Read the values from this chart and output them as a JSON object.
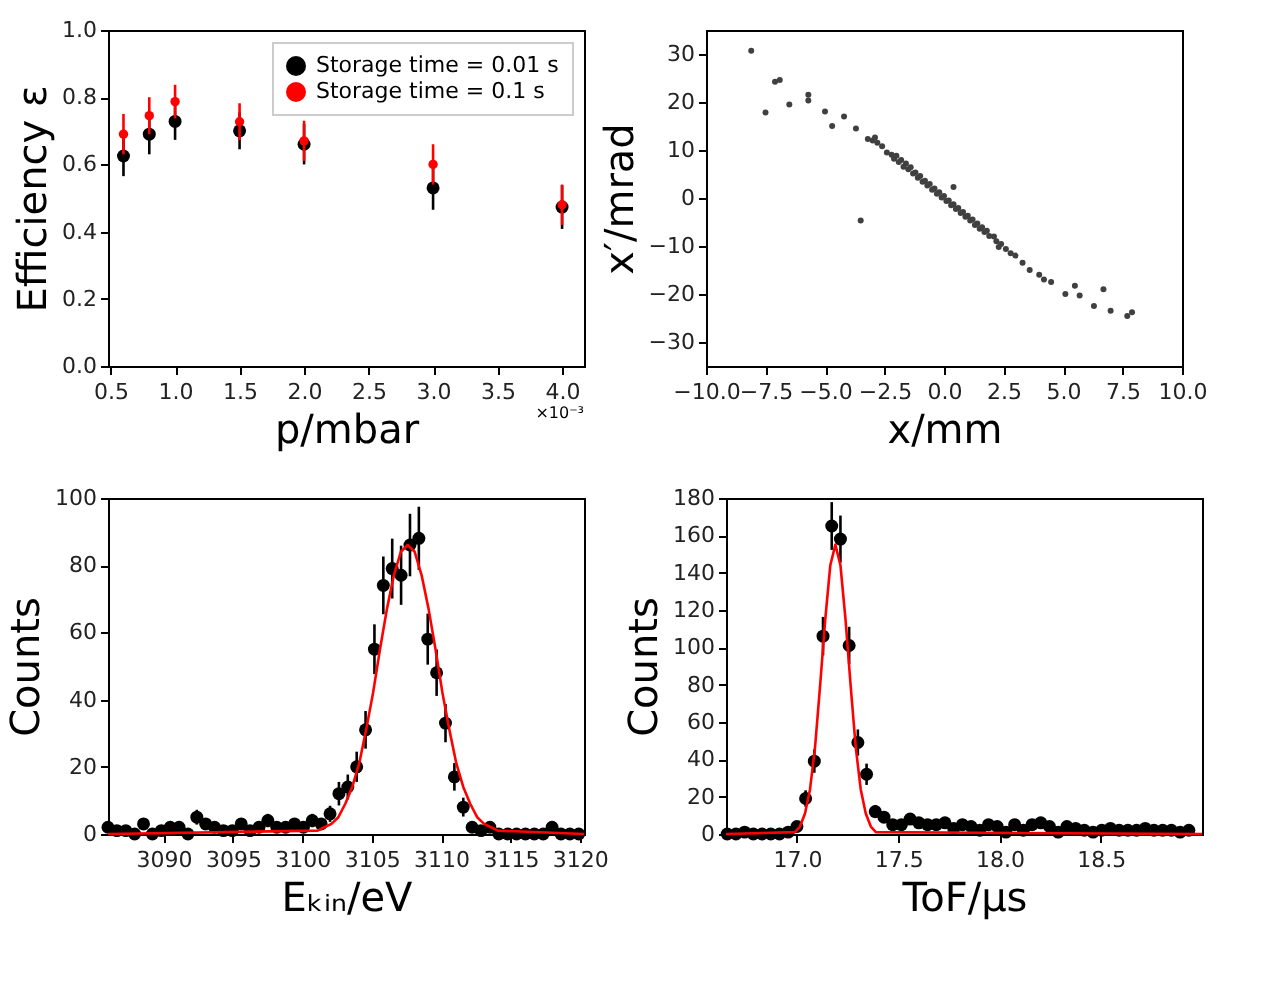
{
  "chart_data": [
    {
      "type": "scatter",
      "xlabel": "p/mbar",
      "ylabel": "Efficiency ε",
      "annotations": [
        "×10⁻³"
      ],
      "legend": "top right",
      "marker": "circle",
      "x": [
        0.6,
        0.8,
        1.0,
        1.5,
        2.0,
        3.0,
        4.0
      ],
      "xlim": [
        0.48,
        4.17
      ],
      "xticks": [
        {
          "value": 0.5,
          "label": "0.5"
        },
        {
          "value": 1,
          "label": "1.0"
        },
        {
          "value": 1.5,
          "label": "1.5"
        },
        {
          "value": 2,
          "label": "2.0"
        },
        {
          "value": 2.5,
          "label": "2.5"
        },
        {
          "value": 3,
          "label": "3.0"
        },
        {
          "value": 3.5,
          "label": "3.5"
        },
        {
          "value": 4,
          "label": "4.0"
        }
      ],
      "ylim": [
        0,
        1
      ],
      "yticks": [
        {
          "value": 0,
          "label": "0.0"
        },
        {
          "value": 0.2,
          "label": "0.2"
        },
        {
          "value": 0.4,
          "label": "0.4"
        },
        {
          "value": 0.6,
          "label": "0.6"
        },
        {
          "value": 0.8,
          "label": "0.8"
        },
        {
          "value": 1,
          "label": "1.0"
        }
      ],
      "series": [
        {
          "name": "Storage time = 0.01 s",
          "color": "#000000",
          "values": [
            0.625,
            0.69,
            0.728,
            0.7,
            0.66,
            0.53,
            0.473
          ],
          "errors": [
            0.06,
            0.06,
            0.055,
            0.055,
            0.06,
            0.065,
            0.065
          ]
        },
        {
          "name": "Storage time = 0.1 s",
          "color": "#ff0000",
          "values": [
            0.69,
            0.745,
            0.787,
            0.727,
            0.67,
            0.6,
            0.48
          ],
          "errors": [
            0.06,
            0.055,
            0.05,
            0.055,
            0.06,
            0.06,
            0.06
          ]
        }
      ]
    },
    {
      "type": "scatter",
      "xlabel": "x/mm",
      "ylabel": "x′/mrad",
      "marker": "circle",
      "xlim": [
        -10,
        10
      ],
      "xticks": [
        {
          "value": -10,
          "label": "−10.0"
        },
        {
          "value": -7.5,
          "label": "−7.5"
        },
        {
          "value": -5,
          "label": "−5.0"
        },
        {
          "value": -2.5,
          "label": "−2.5"
        },
        {
          "value": 0,
          "label": "0.0"
        },
        {
          "value": 2.5,
          "label": "2.5"
        },
        {
          "value": 5,
          "label": "5.0"
        },
        {
          "value": 7.5,
          "label": "7.5"
        },
        {
          "value": 10,
          "label": "10.0"
        }
      ],
      "ylim": [
        -35,
        35
      ],
      "yticks": [
        {
          "value": -30,
          "label": "−30"
        },
        {
          "value": -20,
          "label": "−20"
        },
        {
          "value": -10,
          "label": "−10"
        },
        0,
        10,
        20,
        30
      ],
      "x": [
        -2.2,
        -2.1,
        -2.0,
        -1.9,
        -1.8,
        -1.7,
        -1.6,
        -1.5,
        -1.4,
        -1.3,
        -1.2,
        -1.1,
        -1.0,
        -0.9,
        -0.8,
        -0.7,
        -0.6,
        -0.5,
        -0.4,
        -0.3,
        -0.2,
        -0.1,
        0,
        0.1,
        0.2,
        0.3,
        0.4,
        0.5,
        0.6,
        0.7,
        0.8,
        0.9,
        1.0,
        1.1,
        1.2,
        1.3,
        1.4,
        1.5,
        1.6,
        1.7,
        1.8,
        1.9,
        2.1,
        2.2,
        -2.6,
        -2.4,
        -3.0,
        -2.9,
        -2.8,
        2.3,
        2.4,
        2.6,
        2.8,
        -8.1,
        -7.5,
        -7.1,
        -6.9,
        -6.5,
        -5.7,
        -5.7,
        -5.0,
        -4.7,
        -4.2,
        -3.7,
        -3.5,
        -3.2,
        0.4,
        3.0,
        3.3,
        3.6,
        4.0,
        4.2,
        4.5,
        5.1,
        5.5,
        5.7,
        6.3,
        6.7,
        7.0,
        7.7,
        7.9
      ],
      "series": [
        {
          "color": "#404040",
          "values": [
            9,
            8.2,
            8.8,
            7.5,
            7.9,
            6.5,
            7.2,
            6.0,
            6.4,
            5.1,
            5.3,
            4.2,
            4.6,
            3.4,
            3.6,
            2.6,
            2.9,
            1.7,
            2.0,
            0.9,
            1.2,
            0.1,
            0.4,
            -0.6,
            -0.5,
            -1.5,
            -1.3,
            -2.3,
            -2.1,
            -3.1,
            -2.9,
            -3.9,
            -3.7,
            -4.7,
            -4.5,
            -5.6,
            -5.3,
            -6.4,
            -6.1,
            -7.1,
            -6.8,
            -7.9,
            -8.0,
            -9.0,
            10.8,
            9.5,
            12.0,
            12.6,
            11.5,
            -10.2,
            -9.6,
            -10.6,
            -11.5,
            30.7,
            17.8,
            24.2,
            24.6,
            19.5,
            21.5,
            20.3,
            18,
            15,
            17,
            14.5,
            -4.7,
            12.3,
            2.3,
            -12,
            -13.5,
            -15,
            -16,
            -17,
            -17.5,
            -20,
            -18.3,
            -20.3,
            -22.5,
            -19,
            -23.5,
            -24.6,
            -23.8
          ]
        }
      ]
    },
    {
      "type": "scatter",
      "xlabel": "Eₖᵢₙ/eV",
      "ylabel": "Counts",
      "marker": "circle",
      "xlim": [
        3086.0,
        3120.3
      ],
      "xticks": [
        3090,
        3095,
        3100,
        3105,
        3110,
        3115,
        3120
      ],
      "ylim": [
        0,
        100
      ],
      "yticks": [
        0,
        20,
        40,
        60,
        80,
        100
      ],
      "series": [
        {
          "color": "#000000",
          "x": [
            3086,
            3086.64,
            3087.28,
            3087.92,
            3088.56,
            3089.2,
            3089.84,
            3090.48,
            3091.12,
            3091.76,
            3092.4,
            3093.04,
            3093.68,
            3094.32,
            3094.96,
            3095.6,
            3096.24,
            3096.88,
            3097.52,
            3098.16,
            3098.8,
            3099.44,
            3100.08,
            3100.72,
            3101.36,
            3102,
            3102.64,
            3103.28,
            3103.92,
            3104.56,
            3105.2,
            3105.84,
            3106.48,
            3107.12,
            3107.76,
            3108.4,
            3109.04,
            3109.68,
            3110.32,
            3110.96,
            3111.6,
            3112.24,
            3112.88,
            3113.52,
            3114.16,
            3114.8,
            3115.44,
            3116.08,
            3116.72,
            3117.36,
            3118,
            3118.64,
            3119.28,
            3119.92
          ],
          "values": [
            2,
            1,
            1,
            0,
            3,
            0,
            1,
            2,
            2,
            0,
            5,
            3,
            2,
            1,
            1,
            3,
            1,
            2,
            4,
            2,
            2,
            3,
            2,
            4,
            3,
            6,
            12,
            14,
            20,
            31,
            55,
            74,
            79,
            77,
            86,
            88,
            58,
            48,
            33,
            17,
            8,
            2,
            1,
            2,
            0,
            0,
            0,
            0,
            0,
            0,
            2,
            0,
            0,
            0
          ],
          "errors": [
            null,
            null,
            null,
            null,
            1.7,
            null,
            null,
            null,
            null,
            null,
            2.2,
            1.7,
            null,
            null,
            null,
            1.7,
            null,
            null,
            2,
            null,
            null,
            1.7,
            null,
            2,
            1.7,
            2.4,
            3.5,
            3.7,
            4.5,
            5.6,
            7.4,
            8.6,
            8.9,
            8.8,
            9.3,
            9.4,
            7.6,
            6.9,
            5.7,
            4.1,
            2.8,
            null,
            null,
            null,
            null,
            null,
            null,
            null,
            null,
            null,
            null,
            null,
            null,
            null
          ]
        },
        {
          "type": "line",
          "marker": "none",
          "color": "#ff0000",
          "x": [
            3086,
            3101.1,
            3101.6,
            3102.1,
            3102.6,
            3103.1,
            3103.6,
            3104.1,
            3104.6,
            3105.1,
            3105.6,
            3106.1,
            3106.6,
            3107.1,
            3107.6,
            3108.1,
            3108.6,
            3109.1,
            3109.6,
            3110.1,
            3110.6,
            3111.1,
            3111.6,
            3112.1,
            3112.6,
            3113.1,
            3113.6,
            3114.1,
            3120.3
          ],
          "values": [
            0,
            1,
            2,
            3,
            5,
            9,
            14,
            21,
            31,
            42,
            55,
            67,
            77,
            84,
            86,
            84,
            77,
            67,
            55,
            42,
            31,
            21,
            14,
            9,
            5,
            3,
            2,
            1,
            0
          ]
        }
      ]
    },
    {
      "type": "scatter",
      "xlabel": "ToF/μs",
      "ylabel": "Counts",
      "marker": "circle",
      "xlim": [
        16.65,
        19.0
      ],
      "xticks": [
        {
          "value": 17,
          "label": "17.0"
        },
        {
          "value": 17.5,
          "label": "17.5"
        },
        {
          "value": 18,
          "label": "18.0"
        },
        {
          "value": 18.5,
          "label": "18.5"
        }
      ],
      "ylim": [
        0,
        180
      ],
      "yticks": [
        0,
        20,
        40,
        60,
        80,
        100,
        120,
        140,
        160,
        180
      ],
      "series": [
        {
          "color": "#000000",
          "x": [
            16.656,
            16.699,
            16.742,
            16.785,
            16.828,
            16.871,
            16.914,
            16.957,
            17.0,
            17.043,
            17.086,
            17.129,
            17.172,
            17.215,
            17.258,
            17.301,
            17.344,
            17.387,
            17.43,
            17.473,
            17.516,
            17.559,
            17.602,
            17.645,
            17.688,
            17.731,
            17.774,
            17.817,
            17.86,
            17.903,
            17.946,
            17.989,
            18.032,
            18.075,
            18.118,
            18.161,
            18.204,
            18.247,
            18.29,
            18.333,
            18.376,
            18.419,
            18.462,
            18.505,
            18.548,
            18.591,
            18.634,
            18.677,
            18.72,
            18.763,
            18.806,
            18.849,
            18.892,
            18.935
          ],
          "values": [
            0,
            0,
            1,
            0,
            0,
            0,
            0,
            1,
            4,
            19,
            39,
            106,
            165,
            158,
            101,
            49,
            32,
            12,
            9,
            5,
            5,
            8,
            6,
            5,
            5,
            6,
            3,
            5,
            4,
            2,
            5,
            4,
            1,
            5,
            2,
            5,
            6,
            4,
            1,
            4,
            3,
            2,
            1,
            2,
            3,
            2,
            2,
            2,
            3,
            2,
            2,
            2,
            1,
            2
          ],
          "errors": [
            null,
            null,
            null,
            null,
            null,
            null,
            null,
            null,
            null,
            4.4,
            6.2,
            10.3,
            12.8,
            12.6,
            10,
            7,
            5.7,
            3.5,
            3,
            null,
            null,
            null,
            null,
            null,
            null,
            null,
            null,
            null,
            null,
            null,
            null,
            null,
            null,
            null,
            null,
            null,
            null,
            null,
            null,
            null,
            null,
            null,
            null,
            null,
            null,
            null,
            null,
            null,
            null,
            null,
            null,
            null,
            null,
            null
          ]
        },
        {
          "type": "line",
          "marker": "none",
          "color": "#ff0000",
          "x": [
            16.65,
            16.99,
            17.015,
            17.04,
            17.065,
            17.09,
            17.115,
            17.14,
            17.165,
            17.19,
            17.215,
            17.24,
            17.265,
            17.29,
            17.315,
            17.34,
            17.365,
            17.39,
            19.0
          ],
          "values": [
            0,
            1,
            4,
            11,
            24,
            47,
            80,
            115,
            144,
            155,
            144,
            115,
            80,
            47,
            24,
            11,
            4,
            1,
            0
          ]
        }
      ]
    }
  ]
}
